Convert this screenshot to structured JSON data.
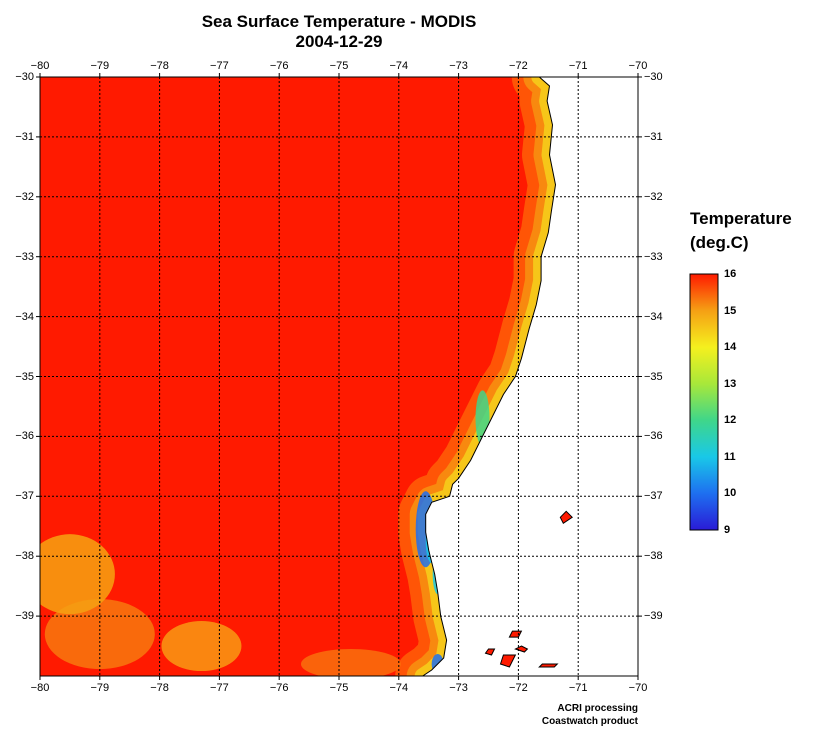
{
  "title": "Sea Surface Temperature - MODIS",
  "subtitle": "2004-12-29",
  "chart_data": {
    "type": "heatmap",
    "variable": "Sea Surface Temperature",
    "date": "2004-12-29",
    "xlim": [
      -80,
      -70
    ],
    "ylim": [
      -40,
      -30
    ],
    "x_ticks": [
      "−80",
      "−79",
      "−78",
      "−77",
      "−76",
      "−75",
      "−74",
      "−73",
      "−72",
      "−71",
      "−70"
    ],
    "y_ticks": [
      "−30",
      "−31",
      "−32",
      "−33",
      "−34",
      "−35",
      "−36",
      "−37",
      "−38",
      "−39"
    ],
    "grid": true,
    "colorbar": {
      "title_line1": "Temperature",
      "title_line2": "(deg.C)",
      "labels": [
        "16",
        "15",
        "14",
        "13",
        "12",
        "11",
        "10",
        "9"
      ],
      "vmin": 9,
      "vmax": 16,
      "colors": [
        "#2a1bd6",
        "#1e6ff0",
        "#19c8e8",
        "#3fd68a",
        "#a8e83a",
        "#f5f01e",
        "#f5a014",
        "#ff1a00"
      ]
    },
    "ocean_color": "#ff1a00",
    "land_color": "#ffffff"
  },
  "coast": [
    [
      -71.65,
      -30.0
    ],
    [
      -71.48,
      -30.15
    ],
    [
      -71.52,
      -30.4
    ],
    [
      -71.43,
      -30.8
    ],
    [
      -71.48,
      -31.3
    ],
    [
      -71.38,
      -31.8
    ],
    [
      -71.45,
      -32.25
    ],
    [
      -71.5,
      -32.6
    ],
    [
      -71.62,
      -33.0
    ],
    [
      -71.62,
      -33.4
    ],
    [
      -71.7,
      -33.8
    ],
    [
      -71.82,
      -34.2
    ],
    [
      -71.95,
      -34.7
    ],
    [
      -72.05,
      -35.0
    ],
    [
      -72.25,
      -35.3
    ],
    [
      -72.4,
      -35.6
    ],
    [
      -72.6,
      -36.0
    ],
    [
      -72.8,
      -36.4
    ],
    [
      -73.0,
      -36.7
    ],
    [
      -73.1,
      -36.8
    ],
    [
      -73.15,
      -37.0
    ],
    [
      -73.45,
      -37.1
    ],
    [
      -73.55,
      -37.3
    ],
    [
      -73.55,
      -37.6
    ],
    [
      -73.5,
      -37.9
    ],
    [
      -73.4,
      -38.3
    ],
    [
      -73.35,
      -38.6
    ],
    [
      -73.3,
      -39.0
    ],
    [
      -73.2,
      -39.4
    ],
    [
      -73.25,
      -39.7
    ],
    [
      -73.45,
      -39.9
    ],
    [
      -73.6,
      -40.0
    ]
  ],
  "islands": [
    [
      [
        -71.2,
        -37.25
      ],
      [
        -71.1,
        -37.35
      ],
      [
        -71.25,
        -37.45
      ],
      [
        -71.3,
        -37.35
      ]
    ],
    [
      [
        -72.1,
        -39.25
      ],
      [
        -71.95,
        -39.25
      ],
      [
        -72.0,
        -39.35
      ],
      [
        -72.15,
        -39.35
      ]
    ],
    [
      [
        -71.95,
        -39.5
      ],
      [
        -71.85,
        -39.55
      ],
      [
        -71.9,
        -39.6
      ],
      [
        -72.05,
        -39.55
      ]
    ],
    [
      [
        -72.25,
        -39.65
      ],
      [
        -72.05,
        -39.65
      ],
      [
        -72.15,
        -39.85
      ],
      [
        -72.3,
        -39.8
      ]
    ],
    [
      [
        -72.5,
        -39.55
      ],
      [
        -72.4,
        -39.55
      ],
      [
        -72.45,
        -39.65
      ],
      [
        -72.55,
        -39.62
      ]
    ],
    [
      [
        -71.6,
        -39.8
      ],
      [
        -71.35,
        -39.8
      ],
      [
        -71.4,
        -39.85
      ],
      [
        -71.65,
        -39.85
      ]
    ]
  ],
  "bands": [
    {
      "color": "#ff6a08",
      "opacity": 0.75,
      "width": 55
    },
    {
      "color": "#f5a014",
      "opacity": 0.7,
      "width": 32
    },
    {
      "color": "#f5e01e",
      "opacity": 0.7,
      "width": 16
    }
  ],
  "cold_spots": [
    {
      "lon": -73.55,
      "lat": -37.55,
      "rx": 10,
      "ry": 38,
      "color": "#1e6ff0"
    },
    {
      "lon": -73.45,
      "lat": -37.75,
      "rx": 6,
      "ry": 22,
      "color": "#19c8e8"
    },
    {
      "lon": -72.6,
      "lat": -35.7,
      "rx": 7,
      "ry": 28,
      "color": "#3fd68a"
    },
    {
      "lon": -73.35,
      "lat": -38.3,
      "rx": 5,
      "ry": 20,
      "color": "#19c8e8"
    },
    {
      "lon": -73.35,
      "lat": -39.8,
      "rx": 6,
      "ry": 10,
      "color": "#1e6ff0"
    }
  ],
  "warm_patches": [
    {
      "lon": -79.5,
      "lat": -38.3,
      "rx": 45,
      "ry": 40,
      "color": "#f5c014",
      "opacity": 0.7
    },
    {
      "lon": -79.0,
      "lat": -39.3,
      "rx": 55,
      "ry": 35,
      "color": "#f5a014",
      "opacity": 0.6
    },
    {
      "lon": -77.3,
      "lat": -39.5,
      "rx": 40,
      "ry": 25,
      "color": "#f5e01e",
      "opacity": 0.55
    },
    {
      "lon": -74.8,
      "lat": -39.8,
      "rx": 50,
      "ry": 15,
      "color": "#f5a014",
      "opacity": 0.55
    }
  ],
  "credits": [
    "ACRI processing",
    "Coastwatch product"
  ]
}
